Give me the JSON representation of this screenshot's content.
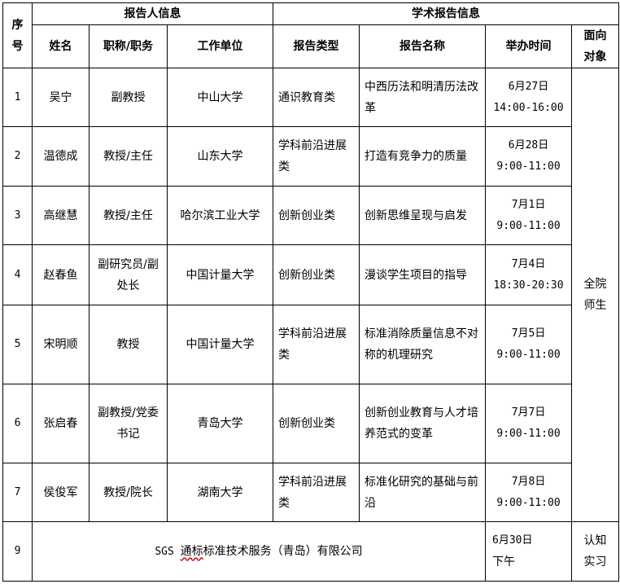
{
  "header": {
    "seq": "序号",
    "group_speaker": "报告人信息",
    "group_report": "学术报告信息",
    "name": "姓名",
    "title": "职称/职务",
    "unit": "工作单位",
    "type": "报告类型",
    "topic": "报告名称",
    "time": "举办时间",
    "audience": "面向对象"
  },
  "audience_all": "全院师生",
  "rows": [
    {
      "no": "1",
      "name": "吴宁",
      "title": "副教授",
      "unit": "中山大学",
      "type": "通识教育类",
      "topic": "中西历法和明清历法改革",
      "date": "6月27日",
      "time": "14:00-16:00"
    },
    {
      "no": "2",
      "name": "温德成",
      "title": "教授/主任",
      "unit": "山东大学",
      "type": "学科前沿进展类",
      "topic": "打造有竞争力的质量",
      "date": "6月28日",
      "time": "9:00-11:00"
    },
    {
      "no": "3",
      "name": "高继慧",
      "title": "教授/主任",
      "unit": "哈尔滨工业大学",
      "type": "创新创业类",
      "topic": "创新思维呈现与启发",
      "date": "7月1日",
      "time": "9:00-11:00"
    },
    {
      "no": "4",
      "name": "赵春鱼",
      "title": "副研究员/副处长",
      "unit": "中国计量大学",
      "type": "创新创业类",
      "topic": "漫谈学生项目的指导",
      "date": "7月4日",
      "time": "18:30-20:30"
    },
    {
      "no": "5",
      "name": "宋明顺",
      "title": "教授",
      "unit": "中国计量大学",
      "type": "学科前沿进展类",
      "topic": "标准消除质量信息不对称的机理研究",
      "date": "7月5日",
      "time": "9:00-11:00"
    },
    {
      "no": "6",
      "name": "张启春",
      "title": "副教授/党委书记",
      "unit": "青岛大学",
      "type": "创新创业类",
      "topic": "创新创业教育与人才培养范式的变革",
      "date": "7月7日",
      "time": "9:00-11:00"
    },
    {
      "no": "7",
      "name": "侯俊军",
      "title": "教授/院长",
      "unit": "湖南大学",
      "type": "学科前沿进展类",
      "topic": "标准化研究的基础与前沿",
      "date": "7月8日",
      "time": "9:00-11:00"
    }
  ],
  "last": {
    "no": "9",
    "org_prefix": "SGS ",
    "org_flagged": "通标",
    "org_rest": "标准技术服务（青岛）有限公司",
    "date": "6月30日",
    "time": "下午",
    "audience": "认知实习"
  }
}
